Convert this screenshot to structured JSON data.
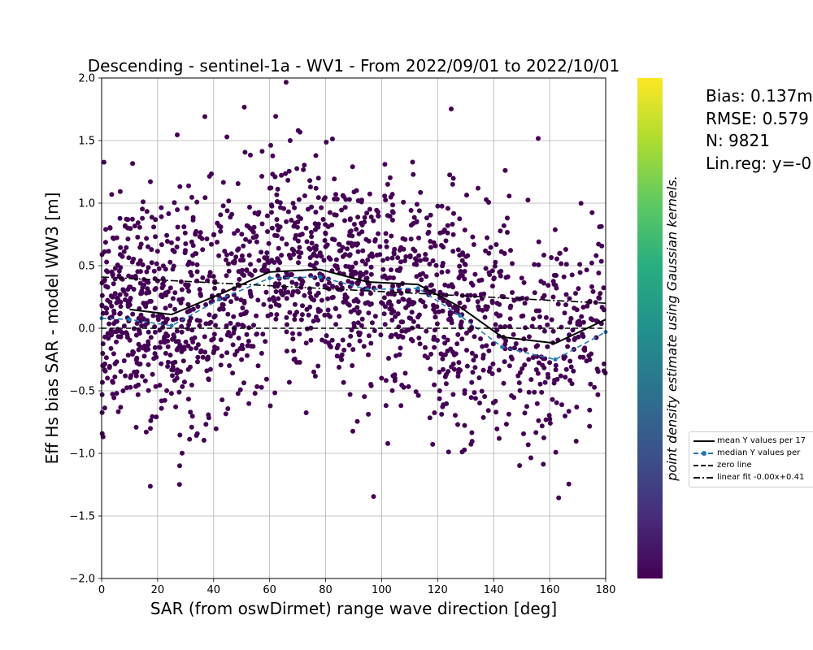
{
  "chart_data": {
    "type": "scatter",
    "title": "Descending - sentinel-1a - WV1 - From 2022/09/01 to 2022/10/01",
    "xlabel": "SAR (from oswDirmet) range wave direction [deg]",
    "ylabel": "Eff Hs bias SAR - model WW3 [m]",
    "xlim": [
      0,
      180
    ],
    "ylim": [
      -2.0,
      2.0
    ],
    "x_ticks": [
      "0",
      "20",
      "40",
      "60",
      "80",
      "100",
      "120",
      "140",
      "160",
      "180"
    ],
    "y_ticks": [
      "−2.0",
      "−1.5",
      "−1.0",
      "−0.5",
      "0.0",
      "0.5",
      "1.0",
      "1.5",
      "2.0"
    ],
    "grid": true,
    "colorbar_label": "point density estimate using Gaussian kernels.",
    "colormap": "viridis",
    "point_color": "#440154",
    "n_points": 9821,
    "scatter_sample_count": 1800,
    "series": [
      {
        "name": "mean Y values per 17",
        "style": "solid",
        "color": "#000000",
        "x": [
          10,
          25,
          42,
          60,
          78,
          95,
          113,
          128,
          143,
          162,
          180
        ],
        "values": [
          0.15,
          0.11,
          0.27,
          0.45,
          0.47,
          0.37,
          0.35,
          0.17,
          -0.07,
          -0.12,
          0.07
        ]
      },
      {
        "name": "median Y values per",
        "style": "dashed-marker",
        "color": "#1f77b4",
        "x": [
          0,
          10,
          25,
          42,
          60,
          78,
          95,
          113,
          128,
          143,
          162,
          180
        ],
        "values": [
          0.08,
          0.07,
          0.02,
          0.23,
          0.4,
          0.41,
          0.31,
          0.32,
          0.1,
          -0.15,
          -0.25,
          -0.03
        ]
      },
      {
        "name": "zero line",
        "style": "dashed",
        "color": "#000000",
        "x": [
          0,
          180
        ],
        "values": [
          0.0,
          0.0
        ]
      },
      {
        "name": "linear fit -0.00x+0.41",
        "style": "dashdot",
        "color": "#000000",
        "x": [
          0,
          180
        ],
        "values": [
          0.41,
          0.2
        ]
      }
    ]
  },
  "stats": {
    "bias": "Bias: 0.137m",
    "rmse": "RMSE: 0.579",
    "n": "N: 9821",
    "linreg": "Lin.reg: y=-0"
  }
}
